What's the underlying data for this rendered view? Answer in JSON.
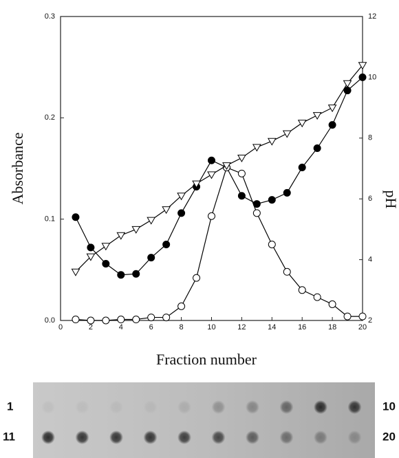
{
  "chart_data": {
    "type": "line",
    "x_label": "Fraction number",
    "y_label": "Absorbance",
    "y2_label": "pH",
    "x": [
      1,
      2,
      3,
      4,
      5,
      6,
      7,
      8,
      9,
      10,
      11,
      12,
      13,
      14,
      15,
      16,
      17,
      18,
      19,
      20
    ],
    "xlim": [
      0,
      20
    ],
    "xticks": [
      0,
      2,
      4,
      6,
      8,
      10,
      12,
      14,
      16,
      18,
      20
    ],
    "ylim": [
      0,
      0.3
    ],
    "yticks": [
      {
        "value": 0,
        "label": "0.0"
      },
      0.1,
      0.2,
      0.3
    ],
    "y2lim": [
      2,
      12
    ],
    "y2ticks": [
      2,
      4,
      6,
      8,
      10,
      12
    ],
    "series": [
      {
        "color": "#000000",
        "marker": "filled-circle",
        "values": [
          0.102,
          0.072,
          0.056,
          0.045,
          0.046,
          0.062,
          0.075,
          0.106,
          0.132,
          0.158,
          0.151,
          0.123,
          0.115,
          0.119,
          0.126,
          0.151,
          0.17,
          0.193,
          0.227,
          0.24
        ]
      },
      {
        "color": "#000000",
        "marker": "open-circle",
        "values": [
          0.001,
          0,
          0,
          0.001,
          0.001,
          0.003,
          0.003,
          0.014,
          0.042,
          0.103,
          0.151,
          0.145,
          0.106,
          0.075,
          0.048,
          0.03,
          0.023,
          0.016,
          0.004,
          0.004
        ]
      },
      {
        "color": "#000000",
        "marker": "open-triangle",
        "axis": "y2",
        "values": [
          3.6,
          4.1,
          4.45,
          4.8,
          5.0,
          5.3,
          5.65,
          6.1,
          6.5,
          6.8,
          7.1,
          7.35,
          7.7,
          7.9,
          8.15,
          8.5,
          8.75,
          9.0,
          9.8,
          10.4
        ]
      }
    ]
  },
  "blot": {
    "row1_start": "1",
    "row1_end": "10",
    "row2_start": "11",
    "row2_end": "20"
  }
}
